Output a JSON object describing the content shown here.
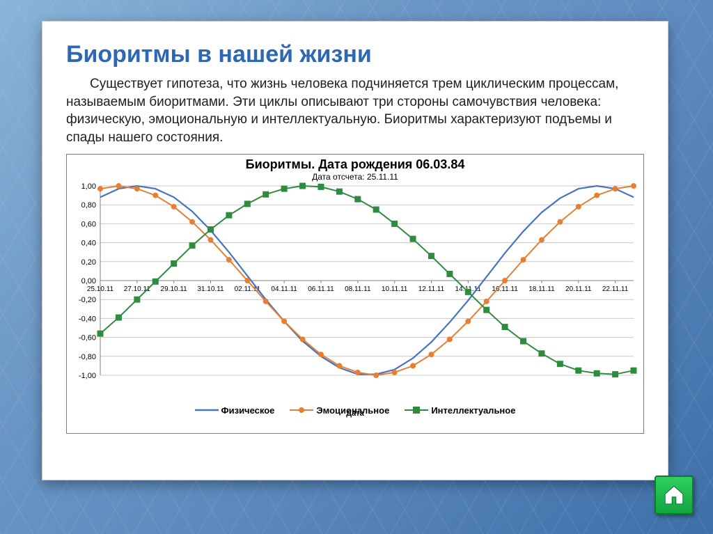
{
  "title": "Биоритмы в нашей жизни",
  "paragraph": "Существует гипотеза, что жизнь человека подчиняется трем циклическим процессам, называемым биоритмами. Эти циклы описывают три стороны самочувствия человека: физическую, эмоциональную и интеллектуальную. Биоритмы характеризуют подъемы и спады нашего состояния.",
  "chart": {
    "type": "line",
    "title": "Биоритмы. Дата рождения 06.03.84",
    "subtitle": "Дата отсчета: 25.11.11",
    "title_fontsize": 18,
    "subtitle_fontsize": 12,
    "background_color": "#ffffff",
    "border_color": "#7a7a7a",
    "grid_color": "#c8c8c8",
    "axis_color": "#808080",
    "label_fontsize": 11,
    "x_axis_label": "Дата",
    "ylim": [
      -1.0,
      1.0
    ],
    "ytick_step": 0.2,
    "y_ticks": [
      "-1,00",
      "-0,80",
      "-0,60",
      "-0,40",
      "-0,20",
      "0,00",
      "0,20",
      "0,40",
      "0,60",
      "0,80",
      "1,00"
    ],
    "x_labels": [
      "25.10.11",
      "27.10.11",
      "29.10.11",
      "31.10.11",
      "02.11.11",
      "04.11.11",
      "06.11.11",
      "08.11.11",
      "10.11.11",
      "12.11.11",
      "14.11.11",
      "16.11.11",
      "18.11.11",
      "20.11.11",
      "22.11.11"
    ],
    "n_points": 30,
    "series": [
      {
        "name": "Физическое",
        "color": "#4674c1",
        "line_width": 2.2,
        "marker": "none",
        "values": [
          0.88,
          0.97,
          1.0,
          0.97,
          0.88,
          0.73,
          0.53,
          0.3,
          0.05,
          -0.2,
          -0.43,
          -0.64,
          -0.8,
          -0.92,
          -0.99,
          -0.99,
          -0.94,
          -0.82,
          -0.65,
          -0.44,
          -0.21,
          0.04,
          0.29,
          0.52,
          0.72,
          0.87,
          0.97,
          1.0,
          0.97,
          0.88
        ]
      },
      {
        "name": "Эмоциональное",
        "color": "#e97d31",
        "line_width": 2.0,
        "marker": "circle",
        "marker_size": 7,
        "values": [
          0.97,
          1.0,
          0.97,
          0.9,
          0.78,
          0.62,
          0.43,
          0.22,
          0.0,
          -0.22,
          -0.43,
          -0.62,
          -0.78,
          -0.9,
          -0.97,
          -1.0,
          -0.97,
          -0.9,
          -0.78,
          -0.62,
          -0.43,
          -0.22,
          0.0,
          0.22,
          0.43,
          0.62,
          0.78,
          0.9,
          0.97,
          1.0
        ]
      },
      {
        "name": "Интеллектуальное",
        "color": "#2f8b3e",
        "line_width": 2.0,
        "marker": "square",
        "marker_size": 8,
        "values": [
          -0.56,
          -0.39,
          -0.2,
          -0.01,
          0.18,
          0.37,
          0.54,
          0.69,
          0.81,
          0.91,
          0.97,
          1.0,
          0.99,
          0.94,
          0.86,
          0.75,
          0.6,
          0.44,
          0.26,
          0.07,
          -0.12,
          -0.31,
          -0.49,
          -0.64,
          -0.77,
          -0.88,
          -0.95,
          -0.98,
          -0.99,
          -0.95
        ]
      }
    ]
  },
  "home_button": {
    "label": "home",
    "color": "#18b84b"
  }
}
